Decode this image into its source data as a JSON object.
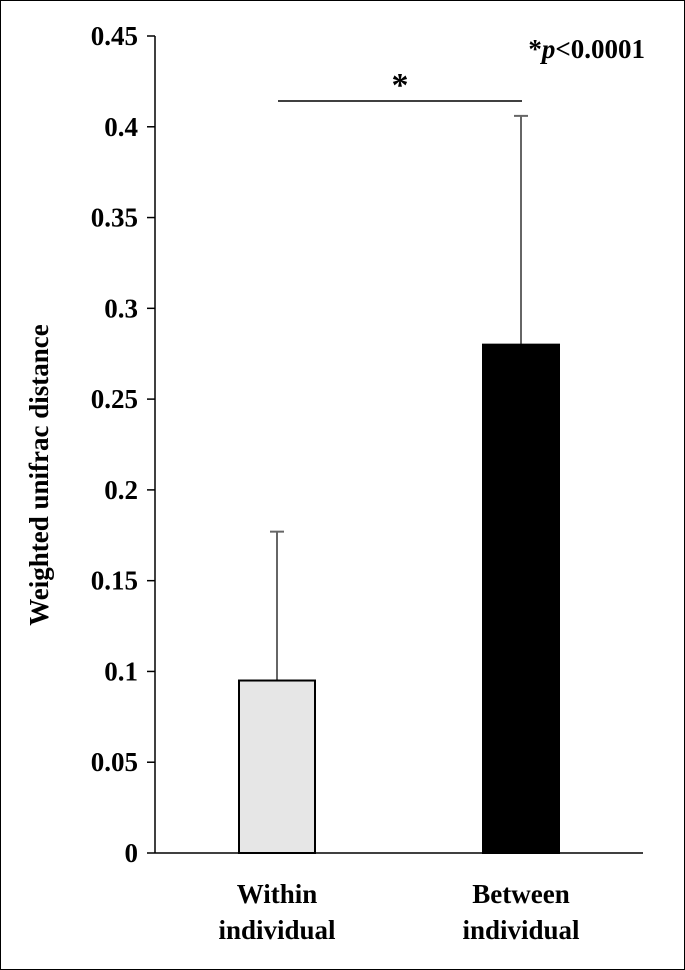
{
  "chart_data": {
    "type": "bar",
    "categories": [
      [
        "Within",
        "individual"
      ],
      [
        "Between",
        "individual"
      ]
    ],
    "values": [
      0.095,
      0.28
    ],
    "error_upper": [
      0.177,
      0.406
    ],
    "colors": [
      "#e6e6e6",
      "#000000"
    ],
    "ylabel": "Weighted unifrac distance",
    "ylim": [
      0,
      0.45
    ],
    "yticks": [
      0,
      0.05,
      0.1,
      0.15,
      0.2,
      0.25,
      0.3,
      0.35,
      0.4,
      0.45
    ],
    "ytick_labels": [
      "0",
      "0.05",
      "0.1",
      "0.15",
      "0.2",
      "0.25",
      "0.3",
      "0.35",
      "0.4",
      "0.45"
    ],
    "grid": false,
    "significance": {
      "marker": "*",
      "annotation_prefix": "*",
      "annotation_italic": "p",
      "annotation_rest": "<0.0001"
    }
  }
}
